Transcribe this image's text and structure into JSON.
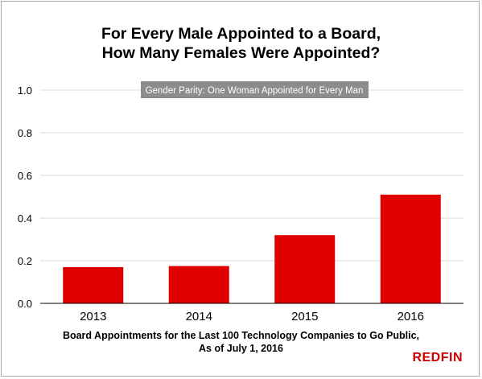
{
  "colors": {
    "bar": "#e10000",
    "parity_band": "#8c8c8c",
    "parity_text": "#ffffff",
    "grid": "#d9d9d9",
    "brand": "#cc0000"
  },
  "title": {
    "line1": "For Every Male Appointed to a Board,",
    "line2": "How Many Females Were Appointed?"
  },
  "caption": {
    "line1": "Board Appointments for the Last 100 Technology Companies to Go Public,",
    "line2": "As of July 1, 2016"
  },
  "brand": "REDFIN",
  "chart_data": {
    "type": "bar",
    "categories": [
      "2013",
      "2014",
      "2015",
      "2016"
    ],
    "values": [
      0.17,
      0.175,
      0.32,
      0.51
    ],
    "title": "For Every Male Appointed to a Board, How Many Females Were Appointed?",
    "xlabel": "Board Appointments for the Last 100 Technology Companies to Go Public, As of July 1, 2016",
    "ylabel": "",
    "ylim": [
      0,
      1.0
    ],
    "yticks": [
      "0.0",
      "0.2",
      "0.4",
      "0.6",
      "0.8",
      "1.0"
    ],
    "grid": true,
    "annotation": {
      "text": "Gender Parity: One Woman Appointed for Every Man",
      "y": 1.0
    }
  }
}
